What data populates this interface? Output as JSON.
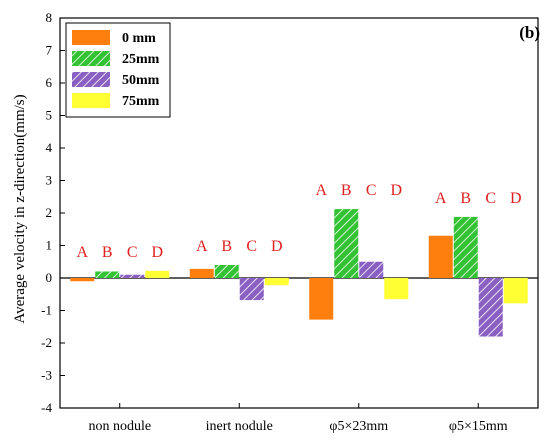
{
  "chart_data": {
    "type": "bar",
    "title": "",
    "panel_label": "(b)",
    "ylabel": "Average velocity in z-direction(mm/s)",
    "xlabel": "",
    "ylim": [
      -4,
      8
    ],
    "yticks": [
      -4,
      -3,
      -2,
      -1,
      0,
      1,
      2,
      3,
      4,
      5,
      6,
      7,
      8
    ],
    "categories": [
      "non nodule",
      "inert nodule",
      "φ5×23mm",
      "φ5×15mm"
    ],
    "series": [
      {
        "name": "0 mm",
        "values": [
          -0.1,
          0.28,
          -1.28,
          1.3
        ],
        "color": "#ff7f0e",
        "pattern": "solid"
      },
      {
        "name": "25mm",
        "values": [
          0.2,
          0.4,
          2.12,
          1.88
        ],
        "color": "#33c233",
        "pattern": "hatch"
      },
      {
        "name": "50mm",
        "values": [
          0.1,
          -0.68,
          0.5,
          -1.8
        ],
        "color": "#8a5fc2",
        "pattern": "hatch"
      },
      {
        "name": "75mm",
        "values": [
          0.22,
          -0.22,
          -0.65,
          -0.78
        ],
        "color": "#ffff33",
        "pattern": "solid"
      }
    ],
    "group_annotations": [
      "A",
      "B",
      "C",
      "D"
    ],
    "legend_position": "top-left",
    "grid": false
  }
}
